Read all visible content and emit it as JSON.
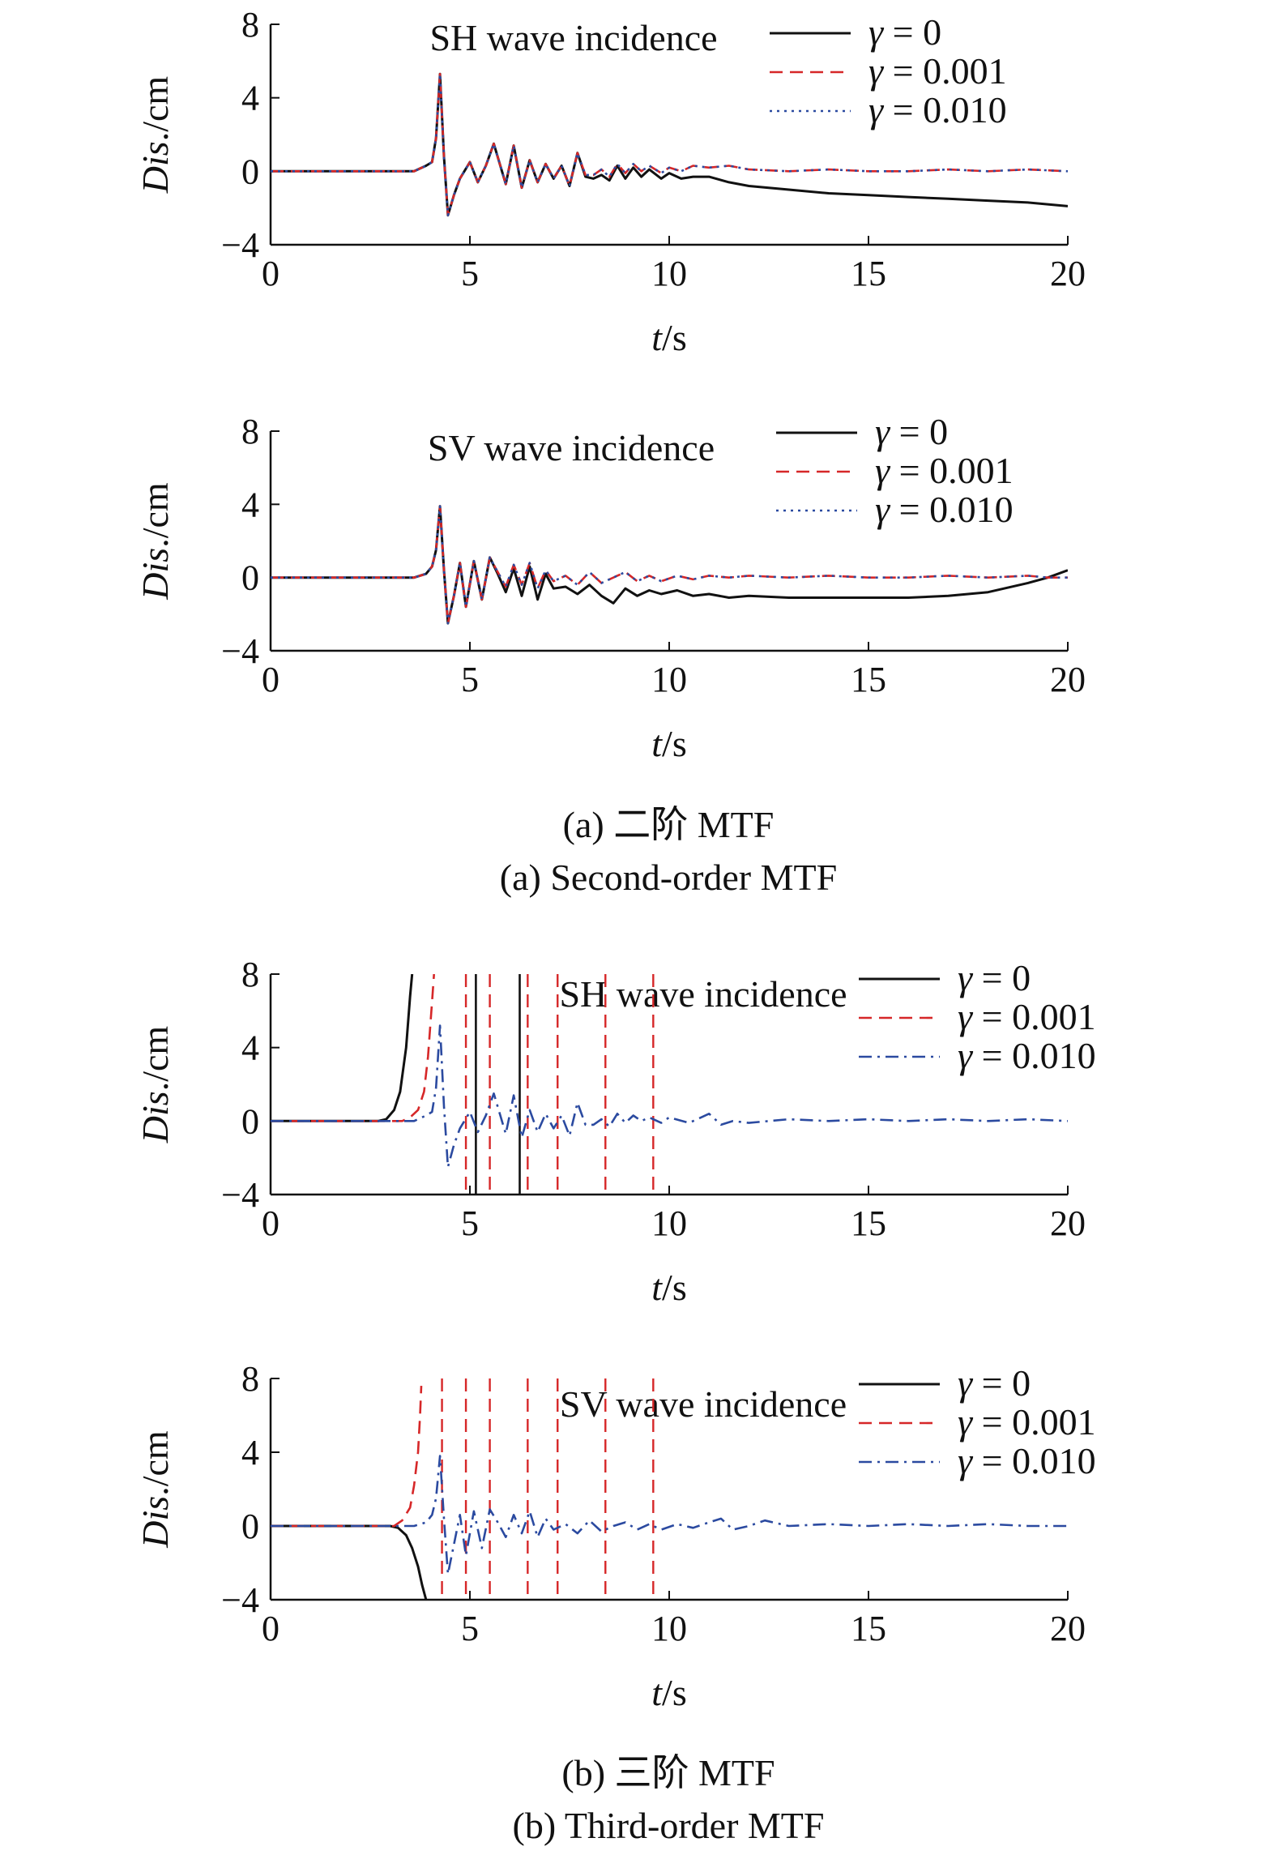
{
  "colors": {
    "black": "#111111",
    "red": "#d62728",
    "blue": "#2b4aa0",
    "axis": "#111111"
  },
  "captions": {
    "a_cn": "(a) 二阶 MTF",
    "a_en": "(a) Second-order MTF",
    "b_cn": "(b) 三阶 MTF",
    "b_en": "(b) Third-order MTF"
  },
  "chart_data": [
    {
      "type": "line",
      "title": "SH wave incidence",
      "ylabel": "Dis./cm",
      "xlabel": "t/s",
      "xlim": [
        0,
        20
      ],
      "ylim": [
        -4,
        8
      ],
      "xticks": [
        0,
        5,
        10,
        15,
        20
      ],
      "yticks": [
        8,
        4,
        0,
        -4
      ],
      "xtick_labels": [
        "0",
        "5",
        "10",
        "15",
        "20"
      ],
      "ytick_labels": [
        "8",
        "4",
        "0",
        "−4"
      ],
      "legend_position": "top-right",
      "series": [
        {
          "name": "γ = 0",
          "style": "solid",
          "color": "#111111",
          "x": [
            0,
            3.6,
            3.9,
            4.05,
            4.15,
            4.25,
            4.35,
            4.45,
            4.6,
            4.75,
            5.0,
            5.2,
            5.4,
            5.6,
            5.75,
            5.9,
            6.1,
            6.3,
            6.5,
            6.7,
            6.9,
            7.1,
            7.3,
            7.5,
            7.7,
            7.9,
            8.1,
            8.3,
            8.5,
            8.7,
            8.9,
            9.1,
            9.3,
            9.5,
            9.8,
            10.0,
            10.3,
            10.6,
            11.0,
            11.5,
            12.0,
            13.0,
            14.0,
            15.0,
            16.0,
            17.0,
            18.0,
            19.0,
            20.0
          ],
          "y": [
            0,
            0,
            0.3,
            0.5,
            1.8,
            5.3,
            0.8,
            -2.4,
            -1.3,
            -0.4,
            0.5,
            -0.6,
            0.3,
            1.5,
            0.4,
            -0.7,
            1.4,
            -0.9,
            0.6,
            -0.6,
            0.4,
            -0.4,
            0.3,
            -0.8,
            1.0,
            -0.3,
            -0.4,
            -0.2,
            -0.5,
            0.3,
            -0.4,
            0.2,
            -0.3,
            0.1,
            -0.4,
            -0.1,
            -0.4,
            -0.3,
            -0.3,
            -0.6,
            -0.8,
            -1.0,
            -1.2,
            -1.3,
            -1.4,
            -1.5,
            -1.6,
            -1.7,
            -1.9
          ]
        },
        {
          "name": "γ = 0.001",
          "style": "dashed",
          "color": "#d62728",
          "x": [
            0,
            3.6,
            3.9,
            4.05,
            4.15,
            4.25,
            4.35,
            4.45,
            4.6,
            4.75,
            5.0,
            5.2,
            5.4,
            5.6,
            5.75,
            5.9,
            6.1,
            6.3,
            6.5,
            6.7,
            6.9,
            7.1,
            7.3,
            7.5,
            7.7,
            7.9,
            8.1,
            8.3,
            8.5,
            8.7,
            8.9,
            9.1,
            9.3,
            9.5,
            9.8,
            10.0,
            10.3,
            10.6,
            11.0,
            11.5,
            12.0,
            13.0,
            14.0,
            15.0,
            16.0,
            17.0,
            18.0,
            19.0,
            20.0
          ],
          "y": [
            0,
            0,
            0.3,
            0.5,
            1.8,
            5.3,
            0.8,
            -2.4,
            -1.3,
            -0.4,
            0.5,
            -0.6,
            0.3,
            1.5,
            0.4,
            -0.7,
            1.4,
            -0.9,
            0.6,
            -0.6,
            0.4,
            -0.4,
            0.3,
            -0.8,
            1.0,
            -0.2,
            -0.2,
            0.1,
            -0.3,
            0.4,
            -0.1,
            0.4,
            0.0,
            0.3,
            -0.1,
            0.2,
            0.0,
            0.3,
            0.2,
            0.3,
            0.1,
            0.0,
            0.1,
            0.0,
            0.0,
            0.1,
            0.0,
            0.1,
            0.0
          ]
        },
        {
          "name": "γ = 0.010",
          "style": "dotted",
          "color": "#2b4aa0",
          "x": [
            0,
            3.6,
            3.9,
            4.05,
            4.15,
            4.25,
            4.35,
            4.45,
            4.6,
            4.75,
            5.0,
            5.2,
            5.4,
            5.6,
            5.75,
            5.9,
            6.1,
            6.3,
            6.5,
            6.7,
            6.9,
            7.1,
            7.3,
            7.5,
            7.7,
            7.9,
            8.1,
            8.3,
            8.5,
            8.7,
            8.9,
            9.1,
            9.3,
            9.5,
            9.8,
            10.0,
            10.3,
            10.6,
            11.0,
            11.5,
            12.0,
            13.0,
            14.0,
            15.0,
            16.0,
            17.0,
            18.0,
            19.0,
            20.0
          ],
          "y": [
            0,
            0,
            0.3,
            0.5,
            1.8,
            5.3,
            0.8,
            -2.4,
            -1.3,
            -0.4,
            0.5,
            -0.6,
            0.3,
            1.5,
            0.4,
            -0.7,
            1.4,
            -0.9,
            0.6,
            -0.6,
            0.4,
            -0.4,
            0.3,
            -0.8,
            1.0,
            -0.2,
            -0.2,
            0.1,
            -0.3,
            0.4,
            -0.1,
            0.4,
            0.0,
            0.3,
            -0.1,
            0.2,
            0.0,
            0.3,
            0.2,
            0.3,
            0.1,
            0.0,
            0.1,
            0.0,
            0.0,
            0.1,
            0.0,
            0.1,
            0.0
          ]
        }
      ]
    },
    {
      "type": "line",
      "title": "SV wave incidence",
      "ylabel": "Dis./cm",
      "xlabel": "t/s",
      "xlim": [
        0,
        20
      ],
      "ylim": [
        -4,
        8
      ],
      "xticks": [
        0,
        5,
        10,
        15,
        20
      ],
      "yticks": [
        8,
        4,
        0,
        -4
      ],
      "xtick_labels": [
        "0",
        "5",
        "10",
        "15",
        "20"
      ],
      "ytick_labels": [
        "8",
        "4",
        "0",
        "−4"
      ],
      "legend_position": "top-right",
      "series": [
        {
          "name": "γ = 0",
          "style": "solid",
          "color": "#111111",
          "x": [
            0,
            3.6,
            3.9,
            4.05,
            4.15,
            4.25,
            4.35,
            4.45,
            4.6,
            4.75,
            4.9,
            5.1,
            5.3,
            5.5,
            5.7,
            5.9,
            6.1,
            6.3,
            6.5,
            6.7,
            6.9,
            7.1,
            7.4,
            7.7,
            8.0,
            8.3,
            8.6,
            8.9,
            9.2,
            9.5,
            9.8,
            10.2,
            10.6,
            11.0,
            11.5,
            12.0,
            13.0,
            14.0,
            15.0,
            16.0,
            17.0,
            18.0,
            19.0,
            19.5,
            20.0
          ],
          "y": [
            0,
            0,
            0.2,
            0.6,
            1.5,
            3.9,
            0.4,
            -2.5,
            -1.0,
            0.8,
            -1.6,
            0.9,
            -1.2,
            1.1,
            0.2,
            -0.8,
            0.5,
            -1.0,
            0.6,
            -1.2,
            0.2,
            -0.6,
            -0.5,
            -0.9,
            -0.4,
            -1.0,
            -1.4,
            -0.6,
            -1.0,
            -0.7,
            -0.9,
            -0.7,
            -1.0,
            -0.9,
            -1.1,
            -1.0,
            -1.1,
            -1.1,
            -1.1,
            -1.1,
            -1.0,
            -0.8,
            -0.3,
            0.0,
            0.4
          ]
        },
        {
          "name": "γ = 0.001",
          "style": "dashed",
          "color": "#d62728",
          "x": [
            0,
            3.6,
            3.9,
            4.05,
            4.15,
            4.25,
            4.35,
            4.45,
            4.6,
            4.75,
            4.9,
            5.1,
            5.3,
            5.5,
            5.7,
            5.9,
            6.1,
            6.3,
            6.5,
            6.7,
            6.9,
            7.1,
            7.4,
            7.7,
            8.0,
            8.3,
            8.6,
            8.9,
            9.2,
            9.5,
            9.8,
            10.2,
            10.6,
            11.0,
            11.5,
            12.0,
            13.0,
            14.0,
            15.0,
            16.0,
            17.0,
            18.0,
            19.0,
            19.5,
            20.0
          ],
          "y": [
            0,
            0,
            0.2,
            0.6,
            1.5,
            3.9,
            0.4,
            -2.5,
            -1.0,
            0.8,
            -1.6,
            0.9,
            -1.2,
            1.1,
            0.3,
            -0.5,
            0.7,
            -0.4,
            0.8,
            -0.6,
            0.4,
            -0.2,
            0.1,
            -0.4,
            0.3,
            -0.3,
            0.0,
            0.3,
            -0.2,
            0.1,
            -0.2,
            0.1,
            -0.1,
            0.1,
            0.0,
            0.1,
            0.0,
            0.1,
            0.0,
            0.0,
            0.1,
            0.0,
            0.1,
            0.0,
            0.0
          ]
        },
        {
          "name": "γ = 0.010",
          "style": "dotted",
          "color": "#2b4aa0",
          "x": [
            0,
            3.6,
            3.9,
            4.05,
            4.15,
            4.25,
            4.35,
            4.45,
            4.6,
            4.75,
            4.9,
            5.1,
            5.3,
            5.5,
            5.7,
            5.9,
            6.1,
            6.3,
            6.5,
            6.7,
            6.9,
            7.1,
            7.4,
            7.7,
            8.0,
            8.3,
            8.6,
            8.9,
            9.2,
            9.5,
            9.8,
            10.2,
            10.6,
            11.0,
            11.5,
            12.0,
            13.0,
            14.0,
            15.0,
            16.0,
            17.0,
            18.0,
            19.0,
            19.5,
            20.0
          ],
          "y": [
            0,
            0,
            0.2,
            0.6,
            1.5,
            3.9,
            0.4,
            -2.5,
            -1.0,
            0.8,
            -1.6,
            0.9,
            -1.2,
            1.1,
            0.3,
            -0.5,
            0.7,
            -0.4,
            0.8,
            -0.6,
            0.4,
            -0.2,
            0.1,
            -0.4,
            0.3,
            -0.3,
            0.0,
            0.3,
            -0.2,
            0.1,
            -0.2,
            0.1,
            -0.1,
            0.1,
            0.0,
            0.1,
            0.0,
            0.1,
            0.0,
            0.0,
            0.1,
            0.0,
            0.1,
            0.0,
            0.0
          ]
        }
      ]
    },
    {
      "type": "line",
      "title": "SH wave incidence",
      "ylabel": "Dis./cm",
      "xlabel": "t/s",
      "xlim": [
        0,
        20
      ],
      "ylim": [
        -4,
        8
      ],
      "xticks": [
        0,
        5,
        10,
        15,
        20
      ],
      "yticks": [
        8,
        4,
        0,
        -4
      ],
      "xtick_labels": [
        "0",
        "5",
        "10",
        "15",
        "20"
      ],
      "ytick_labels": [
        "8",
        "4",
        "0",
        "−4"
      ],
      "legend_position": "top-right",
      "series": [
        {
          "name": "γ = 0",
          "style": "solid",
          "color": "#111111",
          "x": [
            0,
            2.7,
            2.9,
            3.1,
            3.25,
            3.4,
            3.5,
            3.55
          ],
          "y": [
            0,
            0,
            0.1,
            0.6,
            1.6,
            4.0,
            6.8,
            8.0
          ],
          "spikes": [
            5.15,
            6.25
          ]
        },
        {
          "name": "γ = 0.001",
          "style": "dashed",
          "color": "#d62728",
          "x": [
            0,
            3.3,
            3.5,
            3.7,
            3.85,
            3.95,
            4.05,
            4.1
          ],
          "y": [
            0,
            0,
            0.2,
            0.6,
            1.6,
            3.5,
            6.5,
            8.0
          ],
          "spikes": [
            4.9,
            5.5,
            6.45,
            7.2,
            8.4,
            9.6
          ]
        },
        {
          "name": "γ = 0.010",
          "style": "dashdot",
          "color": "#2b4aa0",
          "x": [
            0,
            3.6,
            3.9,
            4.05,
            4.15,
            4.25,
            4.35,
            4.45,
            4.6,
            4.75,
            5.0,
            5.2,
            5.4,
            5.6,
            5.75,
            5.9,
            6.1,
            6.3,
            6.5,
            6.7,
            6.9,
            7.1,
            7.3,
            7.5,
            7.7,
            7.9,
            8.1,
            8.3,
            8.5,
            8.7,
            8.9,
            9.1,
            9.3,
            9.5,
            9.8,
            10.0,
            10.5,
            11.0,
            11.3,
            11.6,
            12.0,
            13.0,
            14.0,
            15.0,
            16.0,
            17.0,
            18.0,
            19.0,
            20.0
          ],
          "y": [
            0,
            0,
            0.3,
            0.5,
            1.8,
            5.2,
            0.8,
            -2.5,
            -1.3,
            -0.4,
            0.5,
            -0.6,
            0.3,
            1.5,
            0.4,
            -0.7,
            1.4,
            -0.9,
            0.6,
            -0.6,
            0.4,
            -0.4,
            0.3,
            -0.8,
            1.0,
            -0.2,
            -0.2,
            0.1,
            -0.3,
            0.4,
            -0.1,
            0.3,
            0.0,
            0.2,
            -0.1,
            0.2,
            -0.1,
            0.4,
            -0.2,
            0.0,
            -0.1,
            0.1,
            0.0,
            0.1,
            0.0,
            0.1,
            0.0,
            0.1,
            0.0
          ]
        }
      ]
    },
    {
      "type": "line",
      "title": "SV wave incidence",
      "ylabel": "Dis./cm",
      "xlabel": "t/s",
      "xlim": [
        0,
        20
      ],
      "ylim": [
        -4,
        8
      ],
      "xticks": [
        0,
        5,
        10,
        15,
        20
      ],
      "yticks": [
        8,
        4,
        0,
        -4
      ],
      "xtick_labels": [
        "0",
        "5",
        "10",
        "15",
        "20"
      ],
      "ytick_labels": [
        "8",
        "4",
        "0",
        "−4"
      ],
      "legend_position": "top-right",
      "series": [
        {
          "name": "γ = 0",
          "style": "solid",
          "color": "#111111",
          "x": [
            0,
            3.0,
            3.2,
            3.4,
            3.55,
            3.7,
            3.8,
            3.9
          ],
          "y": [
            0,
            0,
            -0.1,
            -0.5,
            -1.2,
            -2.2,
            -3.2,
            -4.0
          ]
        },
        {
          "name": "γ = 0.001",
          "style": "dashed",
          "color": "#d62728",
          "x": [
            0,
            3.1,
            3.3,
            3.5,
            3.6,
            3.7,
            3.75,
            3.78
          ],
          "y": [
            0,
            0,
            0.3,
            1.0,
            2.2,
            4.0,
            6.0,
            7.6
          ],
          "spikes": [
            4.3,
            4.9,
            5.5,
            6.45,
            7.2,
            8.4,
            9.6
          ]
        },
        {
          "name": "γ = 0.010",
          "style": "dashdot",
          "color": "#2b4aa0",
          "x": [
            0,
            3.6,
            3.9,
            4.05,
            4.15,
            4.25,
            4.35,
            4.45,
            4.6,
            4.75,
            4.9,
            5.1,
            5.3,
            5.5,
            5.7,
            5.9,
            6.1,
            6.3,
            6.5,
            6.7,
            6.9,
            7.1,
            7.4,
            7.7,
            8.0,
            8.3,
            8.6,
            8.9,
            9.2,
            9.5,
            9.8,
            10.2,
            10.6,
            11.0,
            11.3,
            11.6,
            12.0,
            12.4,
            13.0,
            14.0,
            15.0,
            16.0,
            17.0,
            18.0,
            19.0,
            20.0
          ],
          "y": [
            0,
            0,
            0.2,
            0.6,
            1.5,
            3.8,
            0.4,
            -2.6,
            -1.0,
            0.6,
            -1.6,
            0.8,
            -1.2,
            0.9,
            0.2,
            -0.6,
            0.6,
            -0.4,
            0.8,
            -0.6,
            0.4,
            -0.2,
            0.1,
            -0.4,
            0.3,
            -0.3,
            0.0,
            0.2,
            -0.2,
            0.1,
            -0.2,
            0.1,
            -0.1,
            0.2,
            0.4,
            -0.2,
            0.0,
            0.3,
            0.0,
            0.1,
            0.0,
            0.1,
            0.0,
            0.1,
            0.0,
            0.0
          ]
        }
      ]
    }
  ]
}
